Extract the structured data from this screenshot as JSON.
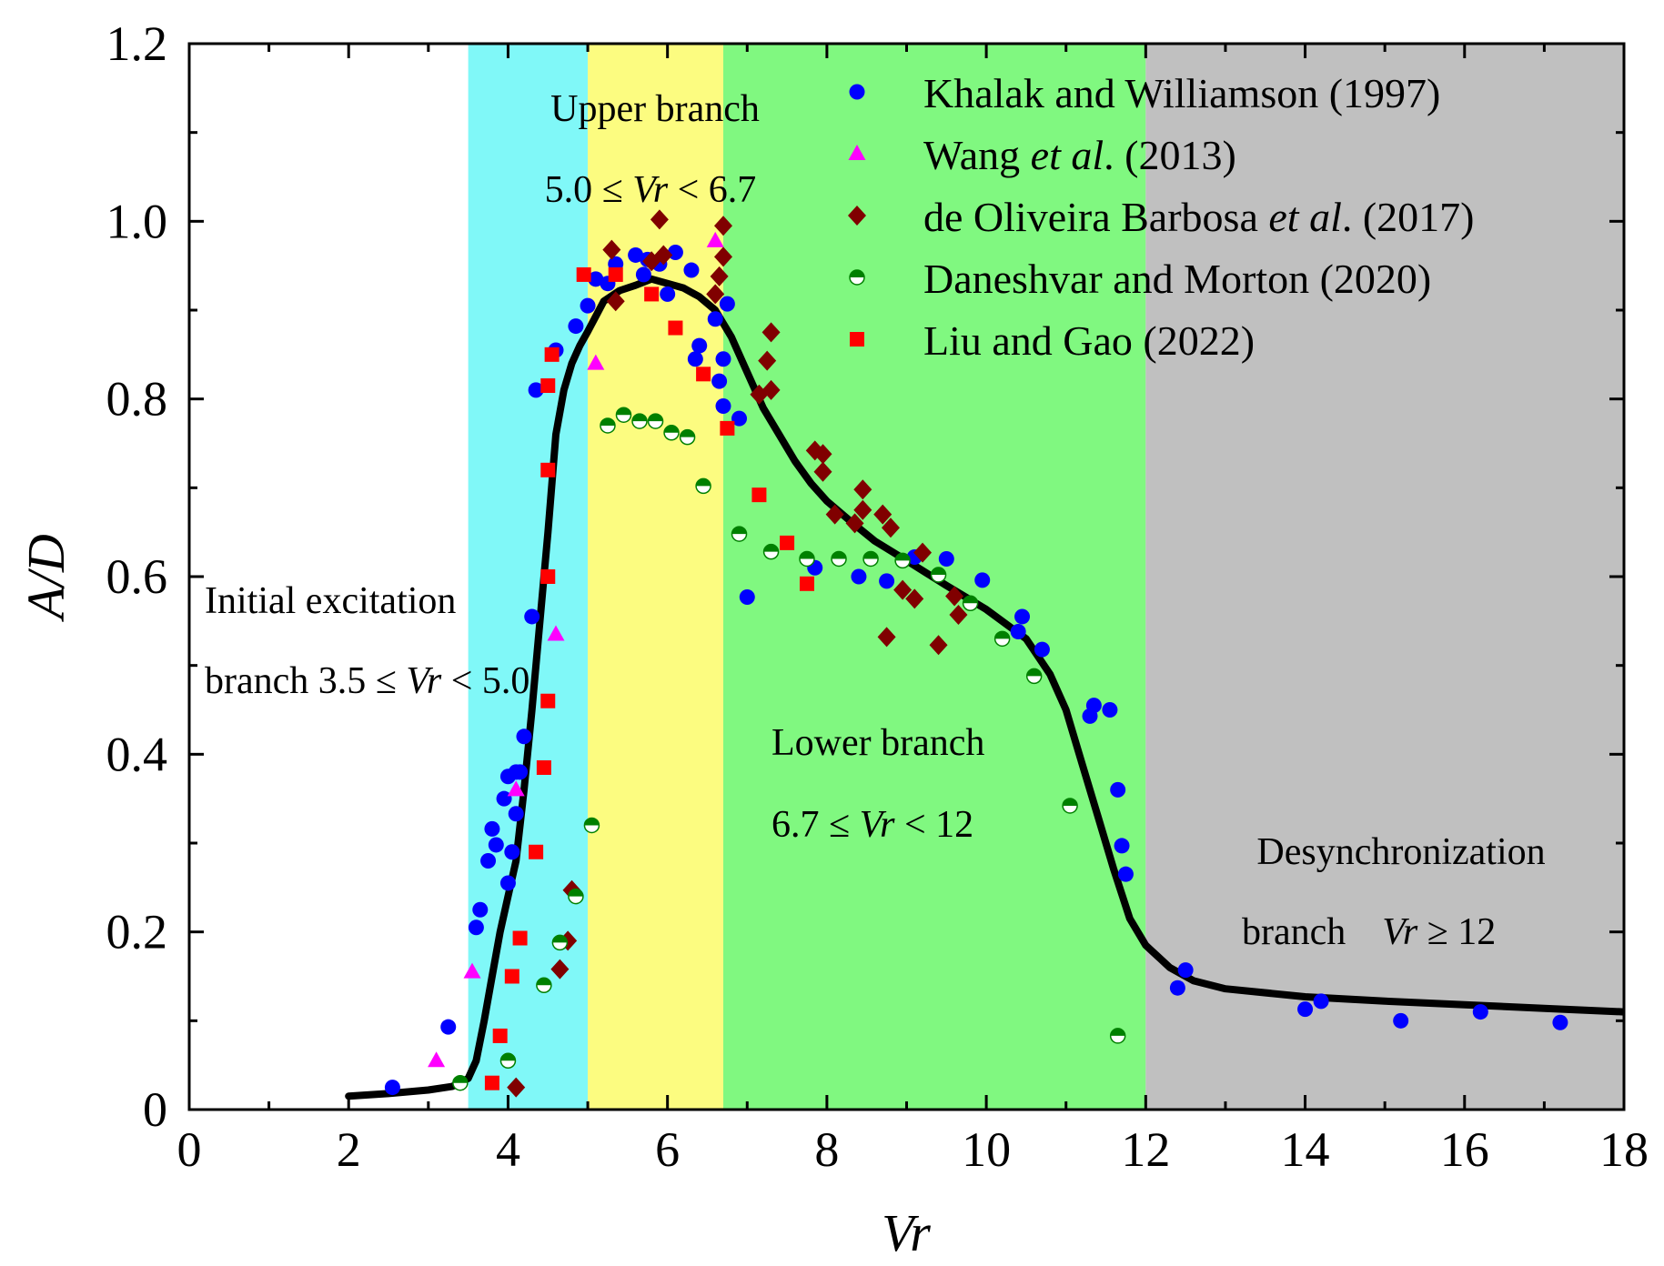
{
  "chart_data": {
    "type": "scatter",
    "xlabel": "Vr",
    "ylabel": "A/D",
    "xlim": [
      0,
      18
    ],
    "ylim": [
      0,
      1.2
    ],
    "xticks": [
      "0",
      "2",
      "4",
      "6",
      "8",
      "10",
      "12",
      "14",
      "16",
      "18"
    ],
    "yticks": [
      "0",
      "0.2",
      "0.4",
      "0.6",
      "0.8",
      "1.0",
      "1.2"
    ],
    "regions": [
      {
        "name": "initial",
        "x": [
          3.5,
          5.0
        ],
        "color": "#80f8f8"
      },
      {
        "name": "upper",
        "x": [
          5.0,
          6.7
        ],
        "color": "#fcfc80"
      },
      {
        "name": "lower",
        "x": [
          6.7,
          12.0
        ],
        "color": "#80f880"
      },
      {
        "name": "desync",
        "x": [
          12.0,
          18.0
        ],
        "color": "#c0c0c0"
      }
    ],
    "annotations": {
      "initial_1": "Initial excitation",
      "initial_2a": "branch 3.5 ≤ ",
      "initial_2b": "Vr",
      "initial_2c": " < 5.0",
      "upper_1": "Upper branch",
      "upper_2a": "5.0 ≤ ",
      "upper_2b": "Vr",
      "upper_2c": " < 6.7",
      "lower_1": "Lower branch",
      "lower_2a": "6.7 ≤ ",
      "lower_2b": "Vr",
      "lower_2c": " < 12",
      "desync_1": "Desynchronization",
      "desync_2a": "branch",
      "desync_2b": "Vr",
      "desync_2c": " ≥ 12"
    },
    "legend": {
      "placement": "top-right",
      "entries": [
        {
          "id": "kw",
          "parts": [
            {
              "t": "Khalak and Williamson (1997)",
              "i": false
            }
          ]
        },
        {
          "id": "wang",
          "parts": [
            {
              "t": "Wang ",
              "i": false
            },
            {
              "t": "et al",
              "i": true
            },
            {
              "t": ".  (2013)",
              "i": false
            }
          ]
        },
        {
          "id": "dob",
          "parts": [
            {
              "t": "de Oliveira Barbosa ",
              "i": false
            },
            {
              "t": "et al",
              "i": true
            },
            {
              "t": ". (2017)",
              "i": false
            }
          ]
        },
        {
          "id": "dm",
          "parts": [
            {
              "t": "Daneshvar and Morton (2020)",
              "i": false
            }
          ]
        },
        {
          "id": "lg",
          "parts": [
            {
              "t": "Liu and Gao (2022)",
              "i": false
            }
          ]
        }
      ]
    },
    "series": [
      {
        "id": "kw",
        "name": "Khalak and Williamson (1997)",
        "marker": "circle",
        "color": "#0000ff",
        "points": [
          [
            2.55,
            0.025
          ],
          [
            3.25,
            0.093
          ],
          [
            3.6,
            0.205
          ],
          [
            3.65,
            0.225
          ],
          [
            3.75,
            0.28
          ],
          [
            3.8,
            0.316
          ],
          [
            3.85,
            0.298
          ],
          [
            3.95,
            0.35
          ],
          [
            4.0,
            0.255
          ],
          [
            4.0,
            0.375
          ],
          [
            4.05,
            0.29
          ],
          [
            4.1,
            0.38
          ],
          [
            4.1,
            0.333
          ],
          [
            4.15,
            0.38
          ],
          [
            4.2,
            0.42
          ],
          [
            4.3,
            0.555
          ],
          [
            4.35,
            0.81
          ],
          [
            4.6,
            0.855
          ],
          [
            4.85,
            0.882
          ],
          [
            5.0,
            0.905
          ],
          [
            5.1,
            0.935
          ],
          [
            5.25,
            0.93
          ],
          [
            5.35,
            0.952
          ],
          [
            5.6,
            0.962
          ],
          [
            5.7,
            0.94
          ],
          [
            5.75,
            0.957
          ],
          [
            5.9,
            0.952
          ],
          [
            6.0,
            0.918
          ],
          [
            6.1,
            0.965
          ],
          [
            6.3,
            0.945
          ],
          [
            6.35,
            0.845
          ],
          [
            6.4,
            0.86
          ],
          [
            6.6,
            0.89
          ],
          [
            6.65,
            0.82
          ],
          [
            6.7,
            0.845
          ],
          [
            6.7,
            0.792
          ],
          [
            6.75,
            0.907
          ],
          [
            6.9,
            0.778
          ],
          [
            7.0,
            0.577
          ],
          [
            7.85,
            0.61
          ],
          [
            8.4,
            0.6
          ],
          [
            8.75,
            0.595
          ],
          [
            9.1,
            0.622
          ],
          [
            9.5,
            0.62
          ],
          [
            9.95,
            0.596
          ],
          [
            10.4,
            0.538
          ],
          [
            10.45,
            0.555
          ],
          [
            10.7,
            0.518
          ],
          [
            11.3,
            0.443
          ],
          [
            11.35,
            0.455
          ],
          [
            11.55,
            0.45
          ],
          [
            11.65,
            0.36
          ],
          [
            11.7,
            0.297
          ],
          [
            11.75,
            0.265
          ],
          [
            12.4,
            0.137
          ],
          [
            12.5,
            0.157
          ],
          [
            14.0,
            0.113
          ],
          [
            14.2,
            0.122
          ],
          [
            15.2,
            0.1
          ],
          [
            16.2,
            0.11
          ],
          [
            17.2,
            0.098
          ]
        ]
      },
      {
        "id": "wang",
        "name": "Wang et al. (2013)",
        "marker": "triangle",
        "color": "#ff00ff",
        "points": [
          [
            3.1,
            0.055
          ],
          [
            3.55,
            0.155
          ],
          [
            4.1,
            0.36
          ],
          [
            4.6,
            0.535
          ],
          [
            5.1,
            0.84
          ],
          [
            6.6,
            0.978
          ]
        ]
      },
      {
        "id": "dob",
        "name": "de Oliveira Barbosa et al. (2017)",
        "marker": "diamond",
        "color": "#800000",
        "points": [
          [
            4.1,
            0.025
          ],
          [
            4.65,
            0.158
          ],
          [
            4.75,
            0.19
          ],
          [
            4.8,
            0.247
          ],
          [
            5.3,
            0.968
          ],
          [
            5.35,
            0.91
          ],
          [
            5.8,
            0.955
          ],
          [
            5.9,
            1.002
          ],
          [
            5.95,
            0.962
          ],
          [
            6.6,
            0.918
          ],
          [
            6.65,
            0.938
          ],
          [
            6.7,
            0.995
          ],
          [
            6.7,
            0.96
          ],
          [
            7.15,
            0.805
          ],
          [
            7.25,
            0.843
          ],
          [
            7.3,
            0.875
          ],
          [
            7.3,
            0.81
          ],
          [
            7.85,
            0.742
          ],
          [
            7.95,
            0.738
          ],
          [
            7.95,
            0.718
          ],
          [
            8.1,
            0.67
          ],
          [
            8.35,
            0.66
          ],
          [
            8.45,
            0.698
          ],
          [
            8.45,
            0.675
          ],
          [
            8.7,
            0.67
          ],
          [
            8.75,
            0.532
          ],
          [
            8.8,
            0.655
          ],
          [
            8.95,
            0.585
          ],
          [
            9.1,
            0.575
          ],
          [
            9.2,
            0.627
          ],
          [
            9.4,
            0.523
          ],
          [
            9.6,
            0.578
          ],
          [
            9.65,
            0.557
          ]
        ]
      },
      {
        "id": "dm",
        "name": "Daneshvar and Morton (2020)",
        "marker": "halfcircle",
        "color": "#008000",
        "points": [
          [
            3.4,
            0.03
          ],
          [
            4.0,
            0.055
          ],
          [
            4.45,
            0.14
          ],
          [
            4.65,
            0.188
          ],
          [
            4.85,
            0.24
          ],
          [
            5.05,
            0.32
          ],
          [
            5.25,
            0.77
          ],
          [
            5.45,
            0.782
          ],
          [
            5.65,
            0.775
          ],
          [
            5.85,
            0.775
          ],
          [
            6.05,
            0.762
          ],
          [
            6.25,
            0.757
          ],
          [
            6.45,
            0.702
          ],
          [
            6.9,
            0.648
          ],
          [
            7.3,
            0.628
          ],
          [
            7.75,
            0.62
          ],
          [
            8.15,
            0.62
          ],
          [
            8.55,
            0.62
          ],
          [
            8.95,
            0.618
          ],
          [
            9.4,
            0.602
          ],
          [
            9.8,
            0.57
          ],
          [
            10.2,
            0.53
          ],
          [
            10.6,
            0.488
          ],
          [
            11.05,
            0.342
          ],
          [
            11.65,
            0.083
          ]
        ]
      },
      {
        "id": "lg",
        "name": "Liu and Gao (2022)",
        "marker": "square",
        "color": "#ff0000",
        "points": [
          [
            3.8,
            0.03
          ],
          [
            3.9,
            0.083
          ],
          [
            4.05,
            0.15
          ],
          [
            4.15,
            0.193
          ],
          [
            4.35,
            0.29
          ],
          [
            4.45,
            0.385
          ],
          [
            4.5,
            0.46
          ],
          [
            4.5,
            0.6
          ],
          [
            4.5,
            0.72
          ],
          [
            4.5,
            0.815
          ],
          [
            4.55,
            0.85
          ],
          [
            4.95,
            0.94
          ],
          [
            5.35,
            0.94
          ],
          [
            5.8,
            0.918
          ],
          [
            6.1,
            0.88
          ],
          [
            6.45,
            0.828
          ],
          [
            6.75,
            0.767
          ],
          [
            7.15,
            0.692
          ],
          [
            7.5,
            0.638
          ],
          [
            7.75,
            0.592
          ]
        ]
      }
    ],
    "curve": {
      "color": "#000000",
      "points": [
        [
          2.0,
          0.015
        ],
        [
          2.5,
          0.018
        ],
        [
          3.0,
          0.022
        ],
        [
          3.3,
          0.026
        ],
        [
          3.5,
          0.035
        ],
        [
          3.6,
          0.055
        ],
        [
          3.7,
          0.1
        ],
        [
          3.8,
          0.15
        ],
        [
          3.9,
          0.2
        ],
        [
          4.0,
          0.24
        ],
        [
          4.1,
          0.28
        ],
        [
          4.2,
          0.36
        ],
        [
          4.3,
          0.45
        ],
        [
          4.4,
          0.55
        ],
        [
          4.5,
          0.65
        ],
        [
          4.6,
          0.76
        ],
        [
          4.7,
          0.81
        ],
        [
          4.8,
          0.84
        ],
        [
          4.9,
          0.86
        ],
        [
          5.0,
          0.876
        ],
        [
          5.2,
          0.91
        ],
        [
          5.4,
          0.922
        ],
        [
          5.6,
          0.928
        ],
        [
          5.8,
          0.935
        ],
        [
          6.0,
          0.93
        ],
        [
          6.2,
          0.925
        ],
        [
          6.4,
          0.915
        ],
        [
          6.6,
          0.9
        ],
        [
          6.8,
          0.87
        ],
        [
          7.0,
          0.83
        ],
        [
          7.2,
          0.79
        ],
        [
          7.4,
          0.76
        ],
        [
          7.6,
          0.73
        ],
        [
          7.8,
          0.705
        ],
        [
          8.0,
          0.685
        ],
        [
          8.3,
          0.662
        ],
        [
          8.6,
          0.64
        ],
        [
          9.0,
          0.618
        ],
        [
          9.5,
          0.59
        ],
        [
          10.0,
          0.563
        ],
        [
          10.5,
          0.53
        ],
        [
          10.8,
          0.49
        ],
        [
          11.0,
          0.45
        ],
        [
          11.2,
          0.39
        ],
        [
          11.4,
          0.33
        ],
        [
          11.6,
          0.27
        ],
        [
          11.8,
          0.215
        ],
        [
          12.0,
          0.185
        ],
        [
          12.3,
          0.16
        ],
        [
          12.6,
          0.145
        ],
        [
          13.0,
          0.136
        ],
        [
          14.0,
          0.127
        ],
        [
          15.0,
          0.122
        ],
        [
          16.0,
          0.118
        ],
        [
          17.0,
          0.114
        ],
        [
          18.0,
          0.11
        ]
      ]
    }
  }
}
